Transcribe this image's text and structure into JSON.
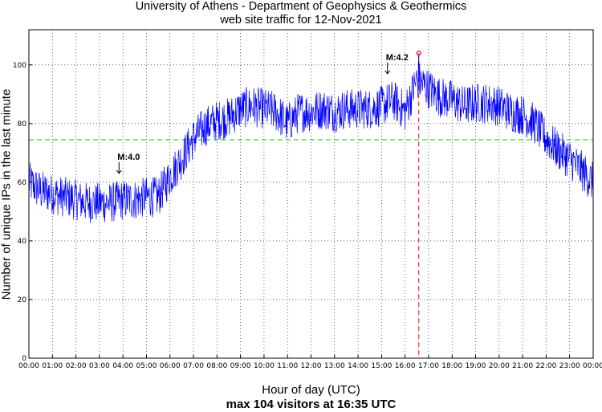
{
  "chart_data": {
    "type": "line",
    "title": "University of Athens - Department of Geophysics & Geothermics",
    "subtitle": "web site traffic for 12-Nov-2021",
    "xlabel": "Hour of day (UTC)",
    "xlabel_note": "max 104 visitors at 16:35 UTC",
    "ylabel": "Number of unique IPs in the last minute",
    "ylim": [
      0,
      112
    ],
    "yticks": [
      "0",
      "20",
      "40",
      "60",
      "80",
      "100"
    ],
    "xticks": [
      "00:00",
      "01:00",
      "02:00",
      "03:00",
      "04:00",
      "05:00",
      "06:00",
      "07:00",
      "08:00",
      "09:00",
      "10:00",
      "11:00",
      "12:00",
      "13:00",
      "14:00",
      "15:00",
      "16:00",
      "17:00",
      "18:00",
      "19:00",
      "20:00",
      "21:00",
      "22:00",
      "23:00",
      "00:00"
    ],
    "grid": true,
    "series": [
      {
        "color": "#0000ff",
        "x_hours": [
          0,
          0.5,
          1,
          1.5,
          2,
          2.5,
          3,
          3.5,
          4,
          4.5,
          5,
          5.5,
          6,
          6.5,
          7,
          7.5,
          8,
          8.5,
          9,
          9.5,
          10,
          10.5,
          11,
          11.5,
          12,
          12.5,
          13,
          13.5,
          14,
          14.5,
          15,
          15.5,
          16,
          16.5,
          17,
          17.5,
          18,
          18.5,
          19,
          19.5,
          20,
          20.5,
          21,
          21.5,
          22,
          22.5,
          23,
          23.5,
          24
        ],
        "values": [
          60,
          57,
          56,
          55,
          54,
          53,
          53,
          53,
          54,
          54,
          55,
          55,
          62,
          68,
          75,
          79,
          81,
          82,
          85,
          86,
          85,
          84,
          80,
          84,
          84,
          85,
          84,
          85,
          85,
          85,
          86,
          88,
          84,
          95,
          92,
          89,
          88,
          86,
          87,
          87,
          86,
          84,
          83,
          80,
          75,
          71,
          68,
          64,
          60
        ]
      }
    ],
    "reference_lines": [
      {
        "orientation": "horizontal",
        "y": 74.5,
        "color": "#00cc00",
        "style": "dashed"
      },
      {
        "orientation": "vertical",
        "x": "16:35",
        "color": "#ff0000",
        "style": "dashed"
      }
    ],
    "max_point": {
      "x": "16:35",
      "y": 104,
      "color": "#ff0000"
    },
    "annotations": [
      {
        "text": "M:4.0",
        "x": "03:50",
        "y": 63
      },
      {
        "text": "M:4.2",
        "x": "15:15",
        "y": 97
      }
    ]
  }
}
